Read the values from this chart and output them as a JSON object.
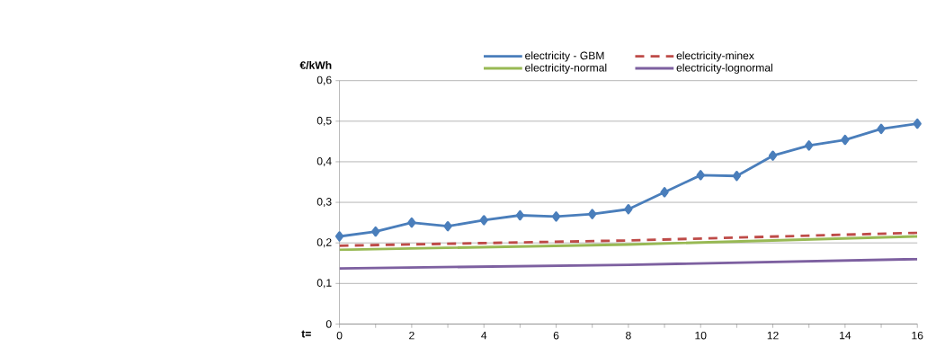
{
  "chart_data": {
    "type": "line",
    "xlabel": "t=",
    "ylabel": "€/kWh",
    "xlim": [
      0,
      16
    ],
    "xticks": [
      0,
      2,
      4,
      6,
      8,
      10,
      12,
      14,
      16
    ],
    "ylim": [
      0,
      0.6
    ],
    "yticks": [
      0,
      {
        "value": 0.1,
        "label": "0,1"
      },
      {
        "value": 0.2,
        "label": "0,2"
      },
      {
        "value": 0.3,
        "label": "0,3"
      },
      {
        "value": 0.4,
        "label": "0,4"
      },
      {
        "value": 0.5,
        "label": "0,5"
      },
      {
        "value": 0.6,
        "label": "0,6"
      }
    ],
    "grid": "y",
    "legend": "top",
    "series": [
      {
        "name": "electricity - GBM",
        "color": "#4a7ebb",
        "marker": "diamond",
        "x": [
          0,
          1,
          2,
          3,
          4,
          5,
          6,
          7,
          8,
          9,
          10,
          11,
          12,
          13,
          14,
          15,
          16
        ],
        "values": [
          0.216,
          0.228,
          0.25,
          0.241,
          0.256,
          0.268,
          0.265,
          0.271,
          0.283,
          0.325,
          0.367,
          0.365,
          0.415,
          0.44,
          0.454,
          0.481,
          0.494
        ]
      },
      {
        "name": "electricity-minex",
        "color": "#be4b48",
        "line_style": "dashed",
        "x": [
          0,
          8,
          16
        ],
        "values": [
          0.193,
          0.206,
          0.225
        ]
      },
      {
        "name": "electricity-normal",
        "color": "#98b954",
        "x": [
          0,
          8,
          16
        ],
        "values": [
          0.183,
          0.196,
          0.216
        ]
      },
      {
        "name": "electricity-lognormal",
        "color": "#7d60a0",
        "x": [
          0,
          8,
          16
        ],
        "values": [
          0.137,
          0.146,
          0.16
        ]
      }
    ]
  }
}
